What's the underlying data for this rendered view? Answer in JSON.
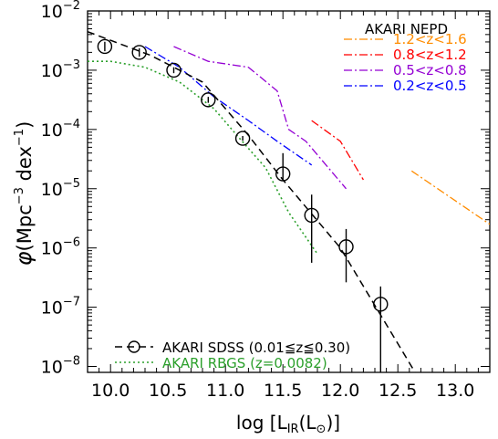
{
  "chart_data": {
    "type": "line",
    "x_axis": {
      "label": "log [L_IR(L_⊙)]",
      "label_parts": {
        "prefix": "log [L",
        "sub1": "IR",
        "mid": "(L",
        "sub2": "⊙",
        "suffix": ")]"
      },
      "range": [
        9.8,
        13.3
      ],
      "tick_values": [
        10.0,
        10.5,
        11.0,
        11.5,
        12.0,
        12.5,
        13.0
      ],
      "tick_labels": [
        "10.0",
        "10.5",
        "11.0",
        "11.5",
        "12.0",
        "12.5",
        "13.0"
      ]
    },
    "y_axis": {
      "label": "φ(Mpc⁻³ dex⁻¹)",
      "label_parts": {
        "phi": "φ",
        "unit_a": "(Mpc",
        "exp_a": "−3",
        "unit_b": " dex",
        "exp_b": "−1",
        "close": ")"
      },
      "scale": "log",
      "range_log10": [
        -8.1,
        -2.0
      ],
      "tick_exponents": [
        -8,
        -7,
        -6,
        -5,
        -4,
        -3,
        -2
      ],
      "tick_labels": [
        "10",
        "10",
        "10",
        "10",
        "10",
        "10",
        "10"
      ],
      "tick_label_exponents": [
        "−8",
        "−7",
        "−6",
        "−5",
        "−4",
        "−3",
        "−2"
      ]
    },
    "nepd_legend_title": "AKARI NEPD",
    "nepd_series": [
      {
        "name": "1.2<z<1.6",
        "color": "#ff8c00",
        "style": "dashdot",
        "x": [
          12.62,
          13.3
        ],
        "log_y": [
          -4.7,
          -5.6
        ]
      },
      {
        "name": "0.8<z<1.2",
        "color": "#ff0000",
        "style": "dashdot",
        "x": [
          11.75,
          12.0,
          12.2
        ],
        "log_y": [
          -3.85,
          -4.2,
          -4.85
        ]
      },
      {
        "name": "0.5<z<0.8",
        "color": "#9400d3",
        "style": "dashdot",
        "x": [
          10.55,
          10.85,
          11.2,
          11.45,
          11.55,
          11.7,
          12.05
        ],
        "log_y": [
          -2.6,
          -2.85,
          -2.95,
          -3.35,
          -4.0,
          -4.2,
          -5.0
        ]
      },
      {
        "name": "0.2<z<0.5",
        "color": "#0000ff",
        "style": "dashdot",
        "x": [
          10.3,
          10.6,
          10.9,
          11.2,
          11.45,
          11.75
        ],
        "log_y": [
          -2.6,
          -2.95,
          -3.45,
          -3.85,
          -4.2,
          -4.6
        ]
      }
    ],
    "sdss": {
      "name": "AKARI SDSS (0.01≦z≦0.30)",
      "color": "#000000",
      "points": [
        {
          "x": 9.95,
          "log_y": -2.6,
          "log_err_low": 0.08,
          "log_err_high": 0.08
        },
        {
          "x": 10.25,
          "log_y": -2.7,
          "log_err_low": 0.07,
          "log_err_high": 0.07
        },
        {
          "x": 10.55,
          "log_y": -3.0,
          "log_err_low": 0.05,
          "log_err_high": 0.05
        },
        {
          "x": 10.85,
          "log_y": -3.5,
          "log_err_low": 0.05,
          "log_err_high": 0.05
        },
        {
          "x": 11.15,
          "log_y": -4.15,
          "log_err_low": 0.04,
          "log_err_high": 0.04
        },
        {
          "x": 11.5,
          "log_y": -4.75,
          "log_err_low": 0.1,
          "log_err_high": 0.35
        },
        {
          "x": 11.75,
          "log_y": -5.45,
          "log_err_low": 0.8,
          "log_err_high": 0.35
        },
        {
          "x": 12.05,
          "log_y": -5.98,
          "log_err_low": 0.6,
          "log_err_high": 0.3
        },
        {
          "x": 12.35,
          "log_y": -6.95,
          "log_err_low": 1.2,
          "log_err_high": 0.3
        }
      ],
      "fit_line": {
        "style": "dashed",
        "x": [
          9.8,
          10.35,
          10.8,
          11.2,
          11.5,
          12.0,
          12.65
        ],
        "log_y": [
          -2.35,
          -2.75,
          -3.2,
          -4.1,
          -4.85,
          -6.0,
          -8.1
        ]
      }
    },
    "rbgs": {
      "name": "AKARI RBGS (z=0.0082)",
      "color": "#2ca02c",
      "style": "dotted",
      "x": [
        9.8,
        10.0,
        10.3,
        10.6,
        10.9,
        11.1,
        11.35,
        11.55,
        11.8
      ],
      "log_y": [
        -2.85,
        -2.85,
        -2.95,
        -3.2,
        -3.65,
        -4.1,
        -4.65,
        -5.4,
        -6.1
      ]
    },
    "legend_placement": "nepd: top-right; sdss/rbgs: bottom-left",
    "grid": false
  }
}
